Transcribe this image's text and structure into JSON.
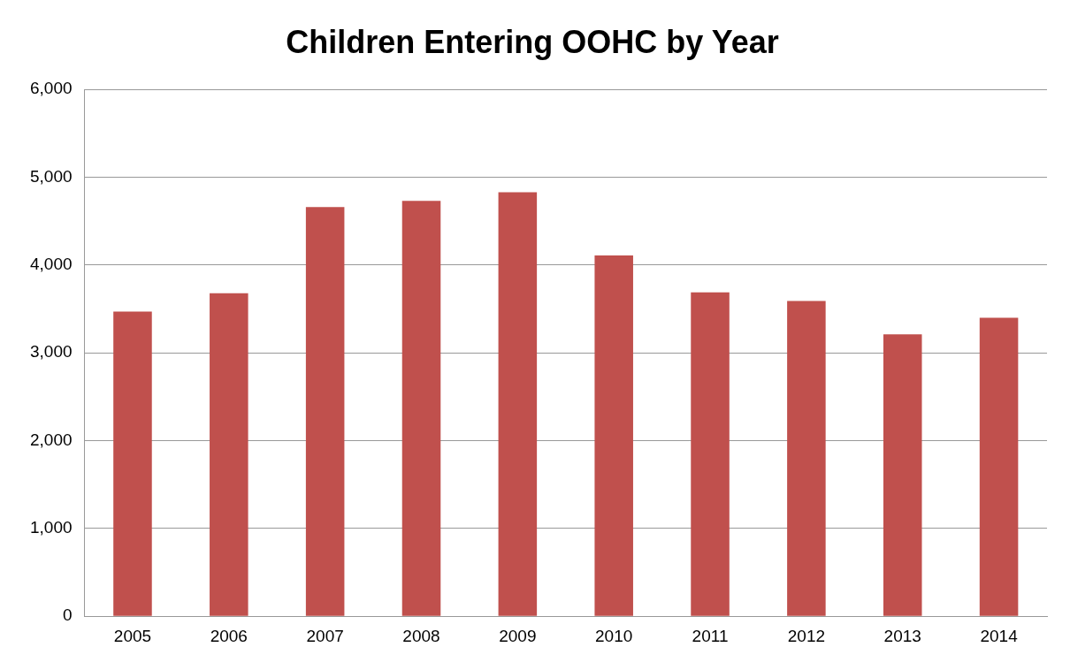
{
  "chart_data": {
    "type": "bar",
    "title": "Children Entering OOHC by Year",
    "categories": [
      "2005",
      "2006",
      "2007",
      "2008",
      "2009",
      "2010",
      "2011",
      "2012",
      "2013",
      "2014"
    ],
    "values": [
      3470,
      3680,
      4660,
      4730,
      4830,
      4110,
      3690,
      3590,
      3210,
      3400
    ],
    "color": "#c0504d",
    "ylim": [
      0,
      6000
    ],
    "yticks": [
      {
        "value": 0,
        "label": "0"
      },
      {
        "value": 1000,
        "label": "1,000"
      },
      {
        "value": 2000,
        "label": "2,000"
      },
      {
        "value": 3000,
        "label": "3,000"
      },
      {
        "value": 4000,
        "label": "4,000"
      },
      {
        "value": 5000,
        "label": "5,000"
      },
      {
        "value": 6000,
        "label": "6,000"
      }
    ],
    "grid": "y",
    "legend": false
  }
}
